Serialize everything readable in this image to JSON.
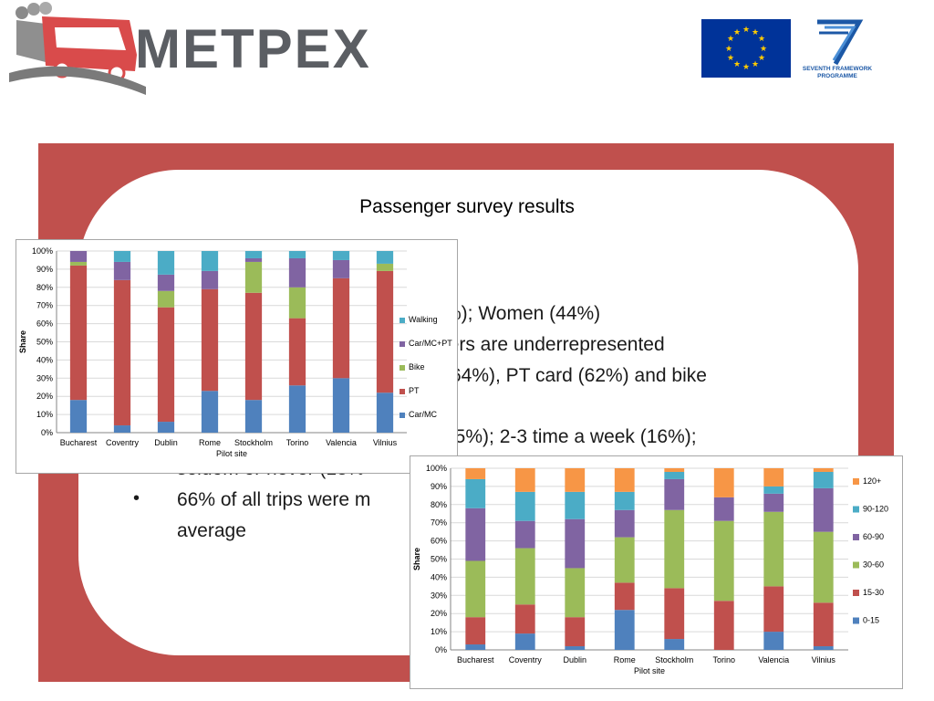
{
  "header": {
    "logo_text": "METPEX",
    "fp7_label_line1": "SEVENTH FRAMEWORK",
    "fp7_label_line2": "PROGRAMME"
  },
  "slide": {
    "title": "Passenger survey results",
    "line1": "%); Women (44%)",
    "line2": "lers are underrepresented",
    "line3": "(64%), PT card (62%) and bike",
    "line4": "55%); 2-3 time a week (16%);",
    "line5": "seldom or never (13%",
    "bullet_glyph": "•",
    "line6": "66% of all trips were m",
    "line7": "average"
  },
  "colors": {
    "frame": "#c0504d",
    "blue": "#4f81bd",
    "red": "#c0504d",
    "green": "#9bbb59",
    "purple": "#8064a2",
    "cyan": "#4bacc6",
    "orange": "#f79646"
  },
  "chart_data": [
    {
      "type": "bar",
      "stacked": true,
      "normalized": true,
      "xlabel": "Pilot site",
      "ylabel": "Share",
      "ylim": [
        0,
        100
      ],
      "yticks": [
        "0%",
        "10%",
        "20%",
        "30%",
        "40%",
        "50%",
        "60%",
        "70%",
        "80%",
        "90%",
        "100%"
      ],
      "legend_position": "right",
      "categories": [
        "Bucharest",
        "Coventry",
        "Dublin",
        "Rome",
        "Stockholm",
        "Torino",
        "Valencia",
        "Vilnius"
      ],
      "series": [
        {
          "name": "Car/MC",
          "color": "#4f81bd",
          "values": [
            18,
            4,
            6,
            23,
            18,
            26,
            30,
            22
          ]
        },
        {
          "name": "PT",
          "color": "#c0504d",
          "values": [
            74,
            80,
            63,
            56,
            59,
            37,
            55,
            67
          ]
        },
        {
          "name": "Bike",
          "color": "#9bbb59",
          "values": [
            2,
            0,
            9,
            0,
            17,
            17,
            0,
            4
          ]
        },
        {
          "name": "Car/MC+PT",
          "color": "#8064a2",
          "values": [
            6,
            10,
            9,
            10,
            2,
            16,
            10,
            0
          ]
        },
        {
          "name": "Walking",
          "color": "#4bacc6",
          "values": [
            0,
            6,
            13,
            11,
            4,
            4,
            5,
            7
          ]
        }
      ]
    },
    {
      "type": "bar",
      "stacked": true,
      "normalized": true,
      "xlabel": "Pilot site",
      "ylabel": "Share",
      "ylim": [
        0,
        100
      ],
      "yticks": [
        "0%",
        "10%",
        "20%",
        "30%",
        "40%",
        "50%",
        "60%",
        "70%",
        "80%",
        "90%",
        "100%"
      ],
      "legend_position": "right",
      "categories": [
        "Bucharest",
        "Coventry",
        "Dublin",
        "Rome",
        "Stockholm",
        "Torino",
        "Valencia",
        "Vilnius"
      ],
      "series": [
        {
          "name": "0-15",
          "color": "#4f81bd",
          "values": [
            3,
            9,
            2,
            22,
            6,
            0,
            10,
            2
          ]
        },
        {
          "name": "15-30",
          "color": "#c0504d",
          "values": [
            15,
            16,
            16,
            15,
            28,
            27,
            25,
            24
          ]
        },
        {
          "name": "30-60",
          "color": "#9bbb59",
          "values": [
            31,
            31,
            27,
            25,
            43,
            44,
            41,
            39
          ]
        },
        {
          "name": "60-90",
          "color": "#8064a2",
          "values": [
            29,
            15,
            27,
            15,
            17,
            13,
            10,
            24
          ]
        },
        {
          "name": "90-120",
          "color": "#4bacc6",
          "values": [
            16,
            16,
            15,
            10,
            4,
            0,
            4,
            9
          ]
        },
        {
          "name": "120+",
          "color": "#f79646",
          "values": [
            6,
            13,
            13,
            13,
            2,
            16,
            10,
            2
          ]
        }
      ]
    }
  ]
}
